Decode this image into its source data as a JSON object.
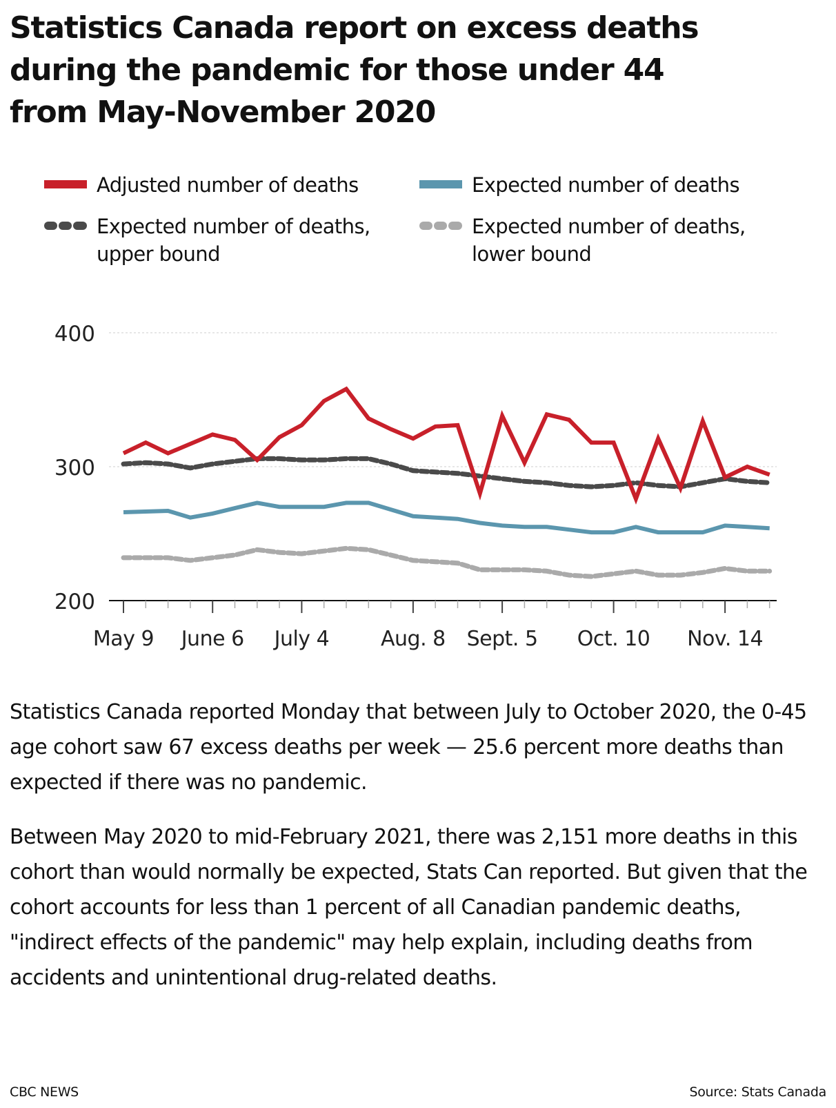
{
  "title": "Statistics Canada report on excess deaths during the pandemic for those under 44 from May-November 2020",
  "title_lines": [
    "Statistics Canada report on excess deaths",
    "during the pandemic for those under 44",
    "from May-November 2020"
  ],
  "legend": [
    {
      "label": "Adjusted number of deaths",
      "color": "#c8202a",
      "style": "solid"
    },
    {
      "label": "Expected number of deaths",
      "color": "#5b96ae",
      "style": "solid"
    },
    {
      "label": "Expected number of deaths,\nupper bound",
      "color": "#4a4a4a",
      "style": "dashed"
    },
    {
      "label": "Expected number of deaths,\nlower bound",
      "color": "#aaaaaa",
      "style": "dashed"
    }
  ],
  "chart_data": {
    "type": "line",
    "title": "Statistics Canada report on excess deaths during the pandemic for those under 44 from May-November 2020",
    "xlabel": "",
    "ylabel": "",
    "ylim": [
      200,
      400
    ],
    "yticks": [
      200,
      300,
      400
    ],
    "grid": true,
    "legend_position": "top",
    "x_major_ticks": [
      {
        "index": 0,
        "label": "May 9"
      },
      {
        "index": 4,
        "label": "June 6"
      },
      {
        "index": 8,
        "label": "July 4"
      },
      {
        "index": 13,
        "label": "Aug. 8"
      },
      {
        "index": 17,
        "label": "Sept. 5"
      },
      {
        "index": 22,
        "label": "Oct. 10"
      },
      {
        "index": 27,
        "label": "Nov. 14"
      }
    ],
    "weeks": 30,
    "x": [
      "May 9",
      "May 16",
      "May 23",
      "May 30",
      "June 6",
      "June 13",
      "June 20",
      "June 27",
      "July 4",
      "July 11",
      "July 18",
      "July 25",
      "Aug. 1",
      "Aug. 8",
      "Aug. 15",
      "Aug. 22",
      "Aug. 29",
      "Sept. 5",
      "Sept. 12",
      "Sept. 19",
      "Sept. 26",
      "Oct. 3",
      "Oct. 10",
      "Oct. 17",
      "Oct. 24",
      "Oct. 31",
      "Nov. 7",
      "Nov. 14",
      "Nov. 21",
      "Nov. 28"
    ],
    "series": [
      {
        "name": "Adjusted number of deaths",
        "color": "#c8202a",
        "style": "solid",
        "values": [
          310,
          318,
          310,
          317,
          324,
          320,
          305,
          322,
          331,
          349,
          358,
          336,
          328,
          321,
          330,
          331,
          280,
          338,
          303,
          339,
          335,
          318,
          318,
          276,
          321,
          284,
          334,
          292,
          300,
          294
        ]
      },
      {
        "name": "Expected number of deaths",
        "color": "#5b96ae",
        "style": "solid",
        "values": [
          266,
          266.5,
          267,
          262,
          265,
          269,
          273,
          270,
          270,
          270,
          273,
          273,
          268,
          263,
          262,
          261,
          258,
          256,
          255,
          255,
          253,
          251,
          251,
          255,
          251,
          251,
          251,
          256,
          255,
          254
        ]
      },
      {
        "name": "Expected number of deaths, upper bound",
        "color": "#4a4a4a",
        "style": "dashed",
        "values": [
          302,
          303,
          302,
          299,
          302,
          304,
          306,
          306,
          305,
          305,
          306,
          306,
          302,
          297,
          296,
          295,
          293,
          291,
          289,
          288,
          286,
          285,
          286,
          288,
          286,
          285,
          288,
          291,
          289,
          288
        ]
      },
      {
        "name": "Expected number of deaths, lower bound",
        "color": "#aaaaaa",
        "style": "dashed",
        "values": [
          232,
          232,
          232,
          230,
          232,
          234,
          238,
          236,
          235,
          237,
          239,
          238,
          234,
          230,
          229,
          228,
          223,
          223,
          223,
          222,
          219,
          218,
          220,
          222,
          219,
          219,
          221,
          224,
          222,
          222
        ]
      }
    ]
  },
  "paragraphs": [
    "Statistics Canada reported Monday that between July to October 2020, the 0-45 age cohort saw 67 excess deaths per week — 25.6 percent more deaths than expected if there was no pandemic.",
    "Between May 2020 to mid-February 2021, there was 2,151 more deaths in this cohort than would normally be expected, Stats Can reported. But given that the cohort accounts for less than 1 percent of all Canadian pandemic deaths, \"indirect effects of the pandemic\" may help explain, including deaths from accidents and unintentional drug-related deaths."
  ],
  "footer": {
    "credit": "CBC NEWS",
    "source": "Source: Stats Canada"
  }
}
